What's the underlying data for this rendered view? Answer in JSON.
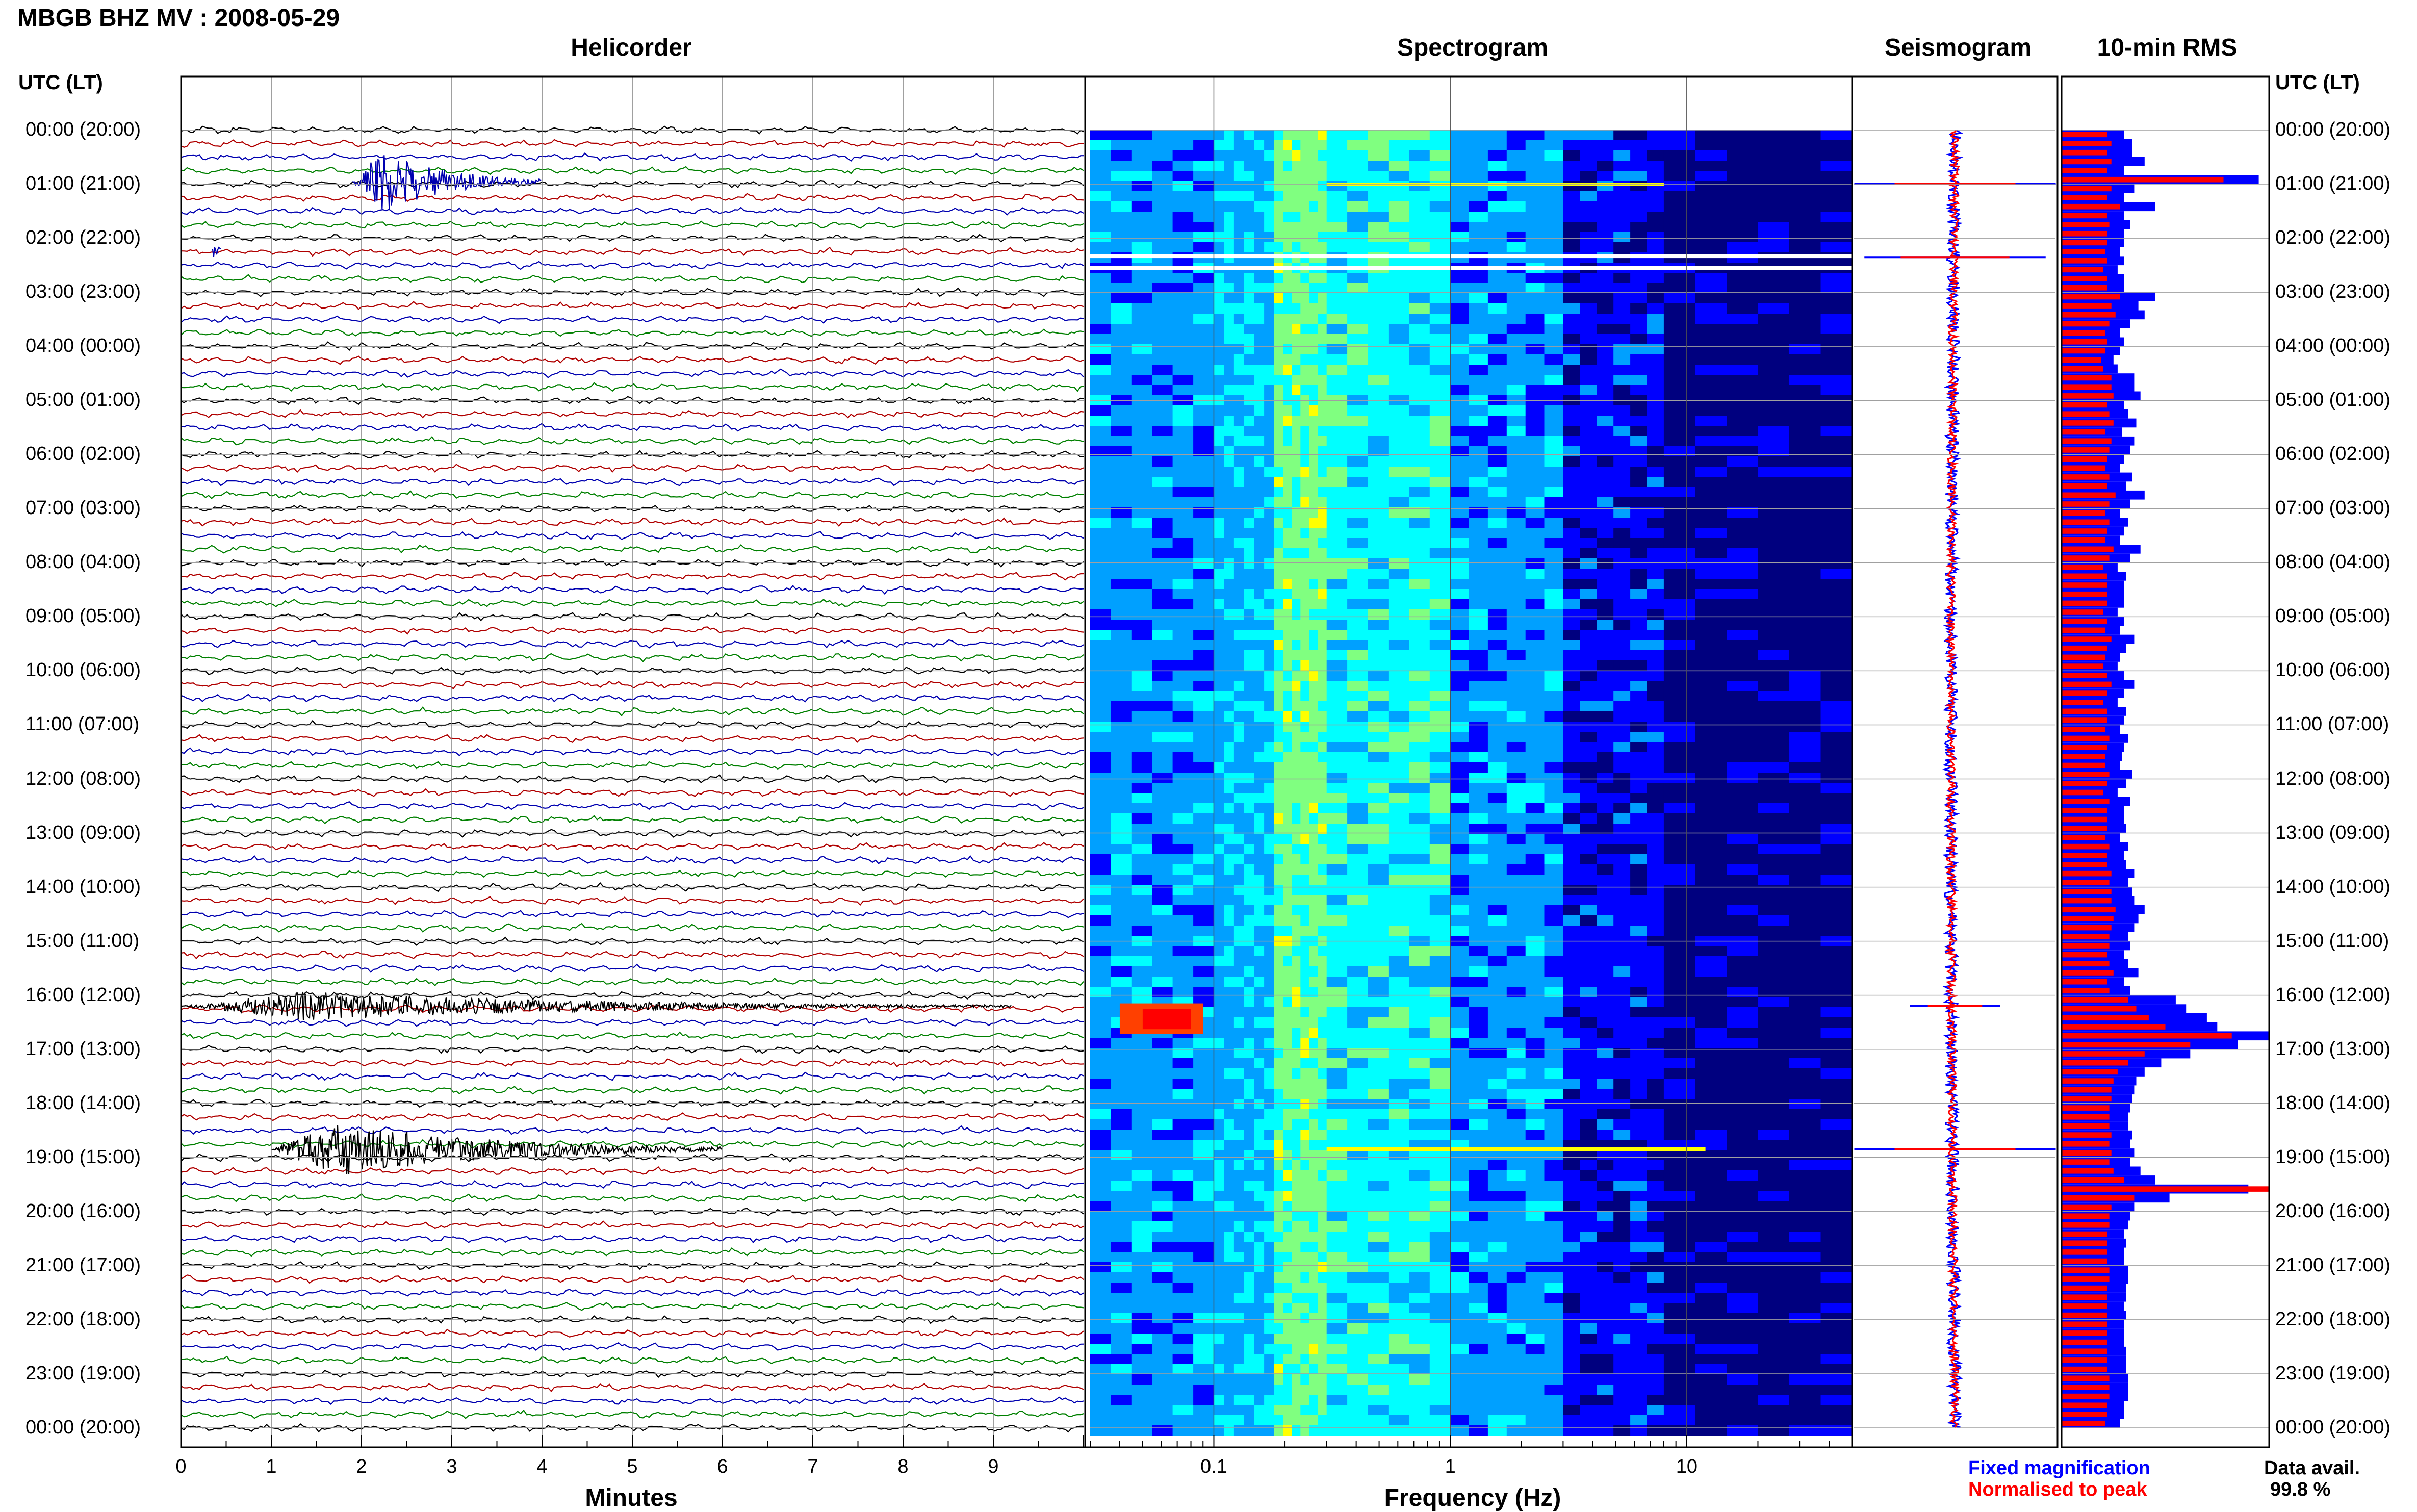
{
  "header": {
    "title": "MBGB BHZ MV : 2008-05-29"
  },
  "panels": {
    "helicorder": "Helicorder",
    "spectrogram": "Spectrogram",
    "seismogram": "Seismogram",
    "rms": "10-min RMS"
  },
  "time_axis": {
    "heading": "UTC (LT)",
    "labels": [
      "00:00 (20:00)",
      "01:00 (21:00)",
      "02:00 (22:00)",
      "03:00 (23:00)",
      "04:00 (00:00)",
      "05:00 (01:00)",
      "06:00 (02:00)",
      "07:00 (03:00)",
      "08:00 (04:00)",
      "09:00 (05:00)",
      "10:00 (06:00)",
      "11:00 (07:00)",
      "12:00 (08:00)",
      "13:00 (09:00)",
      "14:00 (10:00)",
      "15:00 (11:00)",
      "16:00 (12:00)",
      "17:00 (13:00)",
      "18:00 (14:00)",
      "19:00 (15:00)",
      "20:00 (16:00)",
      "21:00 (17:00)",
      "22:00 (18:00)",
      "23:00 (19:00)",
      "00:00 (20:00)"
    ]
  },
  "helicorder_axis": {
    "label": "Minutes",
    "ticks": [
      "0",
      "1",
      "2",
      "3",
      "4",
      "5",
      "6",
      "7",
      "8",
      "9"
    ]
  },
  "frequency_axis": {
    "label": "Frequency (Hz)",
    "ticks": [
      "0.1",
      "1",
      "10"
    ]
  },
  "legend": {
    "fixed": "Fixed magnification",
    "normalised": "Normalised to peak",
    "fixed_color": "#0000ff",
    "normalised_color": "#ff0000"
  },
  "availability": {
    "label": "Data avail.",
    "value": "99.8 %"
  },
  "chart_data": [
    {
      "type": "line",
      "name": "Helicorder",
      "xlabel": "Minutes",
      "xlim": [
        0,
        10
      ],
      "x_ticks": [
        0,
        1,
        2,
        3,
        4,
        5,
        6,
        7,
        8,
        9
      ],
      "trace_colors": [
        "#000000",
        "#b00000",
        "#0000b0",
        "#008000"
      ],
      "events": [
        {
          "hour": 0.95,
          "minute_start": 1.9,
          "minute_end": 4.0,
          "amplitude": 3.5,
          "color": "#0000b0"
        },
        {
          "hour": 2.2,
          "minute_start": 0.35,
          "minute_end": 0.45,
          "amplitude": 1.5,
          "color": "#0000b0"
        },
        {
          "hour": 16.2,
          "minute_start": 0.0,
          "minute_end": 9.2,
          "amplitude": 1.6,
          "color": "#000000"
        },
        {
          "hour": 18.85,
          "minute_start": 1.0,
          "minute_end": 6.0,
          "amplitude": 3.0,
          "color": "#000000"
        }
      ]
    },
    {
      "type": "heatmap",
      "name": "Spectrogram",
      "xlabel": "Frequency (Hz)",
      "xscale": "log",
      "xlim": [
        0.03,
        50
      ],
      "x_ticks": [
        0.1,
        1,
        10
      ],
      "ylim_hours": [
        0,
        24
      ],
      "colormap": [
        "#00007f",
        "#0000ff",
        "#00a0ff",
        "#00ffff",
        "#80ff80",
        "#ffff00",
        "#ff8000",
        "#ff0000"
      ],
      "bands": [
        {
          "f_start": 0.03,
          "f_end": 0.1,
          "level": 0.35
        },
        {
          "f_start": 0.1,
          "f_end": 0.18,
          "level": 0.4
        },
        {
          "f_start": 0.18,
          "f_end": 0.3,
          "level": 0.62
        },
        {
          "f_start": 0.3,
          "f_end": 1.0,
          "level": 0.5
        },
        {
          "f_start": 1.0,
          "f_end": 3.0,
          "level": 0.35
        },
        {
          "f_start": 3.0,
          "f_end": 8.0,
          "level": 0.2
        },
        {
          "f_start": 8.0,
          "f_end": 50,
          "level": 0.08
        }
      ],
      "gaps_hours": [
        2.33,
        2.55
      ]
    },
    {
      "type": "line",
      "name": "Seismogram",
      "ylim_hours": [
        0,
        24
      ],
      "spikes": [
        {
          "hour": 1.0,
          "amplitude": 1.0
        },
        {
          "hour": 2.35,
          "amplitude": 0.9
        },
        {
          "hour": 16.2,
          "amplitude": 0.45
        },
        {
          "hour": 18.85,
          "amplitude": 1.0
        }
      ]
    },
    {
      "type": "bar",
      "name": "10-min RMS",
      "orientation": "horizontal",
      "ylim_hours": [
        0,
        24
      ],
      "series": [
        {
          "name": "Fixed magnification",
          "color": "#0000ff",
          "values": [
            0.3,
            0.34,
            0.34,
            0.4,
            0.3,
            0.95,
            0.35,
            0.3,
            0.45,
            0.3,
            0.33,
            0.3,
            0.3,
            0.28,
            0.3,
            0.27,
            0.3,
            0.3,
            0.45,
            0.37,
            0.4,
            0.33,
            0.28,
            0.3,
            0.28,
            0.25,
            0.27,
            0.35,
            0.35,
            0.38,
            0.3,
            0.32,
            0.36,
            0.29,
            0.35,
            0.33,
            0.3,
            0.28,
            0.34,
            0.31,
            0.4,
            0.33,
            0.28,
            0.32,
            0.3,
            0.28,
            0.38,
            0.33,
            0.27,
            0.31,
            0.3,
            0.3,
            0.3,
            0.27,
            0.3,
            0.28,
            0.35,
            0.31,
            0.28,
            0.27,
            0.3,
            0.35,
            0.3,
            0.27,
            0.31,
            0.3,
            0.28,
            0.32,
            0.3,
            0.29,
            0.28,
            0.34,
            0.31,
            0.27,
            0.33,
            0.3,
            0.3,
            0.31,
            0.28,
            0.32,
            0.3,
            0.31,
            0.35,
            0.32,
            0.34,
            0.35,
            0.4,
            0.37,
            0.35,
            0.32,
            0.33,
            0.3,
            0.32,
            0.37,
            0.3,
            0.33,
            0.55,
            0.6,
            0.7,
            0.75,
            1.0,
            0.85,
            0.62,
            0.48,
            0.4,
            0.36,
            0.35,
            0.34,
            0.33,
            0.32,
            0.32,
            0.34,
            0.33,
            0.35,
            0.33,
            0.38,
            0.45,
            0.9,
            0.52,
            0.35,
            0.33,
            0.32,
            0.3,
            0.31,
            0.3,
            0.3,
            0.32,
            0.32,
            0.31,
            0.31,
            0.3,
            0.31,
            0.3,
            0.3,
            0.3,
            0.31,
            0.31,
            0.31,
            0.32,
            0.32,
            0.32,
            0.3,
            0.3,
            0.28
          ]
        },
        {
          "name": "Normalised to peak",
          "color": "#ff0000",
          "values": [
            0.22,
            0.24,
            0.22,
            0.24,
            0.22,
            0.78,
            0.24,
            0.22,
            0.28,
            0.22,
            0.23,
            0.22,
            0.22,
            0.21,
            0.22,
            0.2,
            0.22,
            0.22,
            0.28,
            0.24,
            0.26,
            0.23,
            0.21,
            0.22,
            0.21,
            0.19,
            0.2,
            0.24,
            0.24,
            0.25,
            0.22,
            0.23,
            0.25,
            0.21,
            0.24,
            0.23,
            0.22,
            0.21,
            0.23,
            0.22,
            0.26,
            0.23,
            0.21,
            0.23,
            0.22,
            0.21,
            0.25,
            0.23,
            0.2,
            0.22,
            0.22,
            0.22,
            0.22,
            0.2,
            0.22,
            0.21,
            0.24,
            0.22,
            0.21,
            0.2,
            0.22,
            0.24,
            0.22,
            0.2,
            0.22,
            0.22,
            0.21,
            0.23,
            0.22,
            0.21,
            0.21,
            0.23,
            0.22,
            0.2,
            0.23,
            0.22,
            0.22,
            0.22,
            0.21,
            0.23,
            0.22,
            0.22,
            0.24,
            0.23,
            0.24,
            0.24,
            0.26,
            0.25,
            0.24,
            0.23,
            0.23,
            0.22,
            0.23,
            0.25,
            0.22,
            0.23,
            0.32,
            0.36,
            0.42,
            0.5,
            0.82,
            0.62,
            0.4,
            0.32,
            0.27,
            0.25,
            0.24,
            0.24,
            0.23,
            0.23,
            0.23,
            0.24,
            0.23,
            0.24,
            0.23,
            0.25,
            0.3,
            1.0,
            0.35,
            0.24,
            0.23,
            0.23,
            0.22,
            0.22,
            0.22,
            0.22,
            0.23,
            0.23,
            0.22,
            0.22,
            0.22,
            0.22,
            0.22,
            0.22,
            0.22,
            0.22,
            0.22,
            0.22,
            0.23,
            0.23,
            0.23,
            0.22,
            0.22,
            0.21
          ]
        }
      ]
    }
  ]
}
